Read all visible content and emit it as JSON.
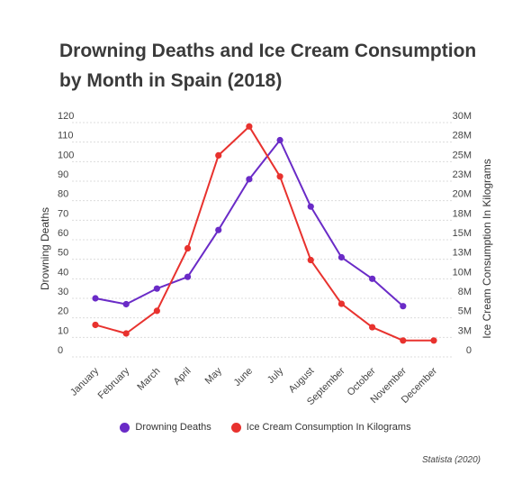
{
  "title": "Drowning Deaths and Ice Cream Consumption by Month in Spain (2018)",
  "source": "Statista (2020)",
  "chart_data": {
    "type": "line",
    "categories": [
      "January",
      "February",
      "March",
      "April",
      "May",
      "June",
      "July",
      "August",
      "September",
      "October",
      "November",
      "December"
    ],
    "ylabel_left": "Drowning Deaths",
    "ylabel_right": "Ice Cream Consumption In Kilograms",
    "y_left_ticks": [
      "0",
      "10",
      "20",
      "30",
      "40",
      "50",
      "60",
      "70",
      "80",
      "90",
      "100",
      "110",
      "120"
    ],
    "y_right_ticks": [
      "0",
      "3M",
      "5M",
      "8M",
      "10M",
      "13M",
      "15M",
      "18M",
      "20M",
      "23M",
      "25M",
      "28M",
      "30M"
    ],
    "ylim_left": [
      0,
      120
    ],
    "ylim_right": [
      0,
      30000000
    ],
    "grid": true,
    "legend_position": "bottom-center",
    "series": [
      {
        "name": "Drowning Deaths",
        "axis": "left",
        "color": "#6a2bc7",
        "values": [
          30,
          27,
          35,
          41,
          65,
          91,
          111,
          77,
          51,
          40,
          26,
          null
        ]
      },
      {
        "name": "Ice Cream Consumption In Kilograms",
        "axis": "right",
        "color": "#e8322e",
        "values": [
          4100000,
          3000000,
          5900000,
          13900000,
          25800000,
          29500000,
          23100000,
          12400000,
          6800000,
          3800000,
          2100000,
          2100000
        ]
      }
    ]
  }
}
